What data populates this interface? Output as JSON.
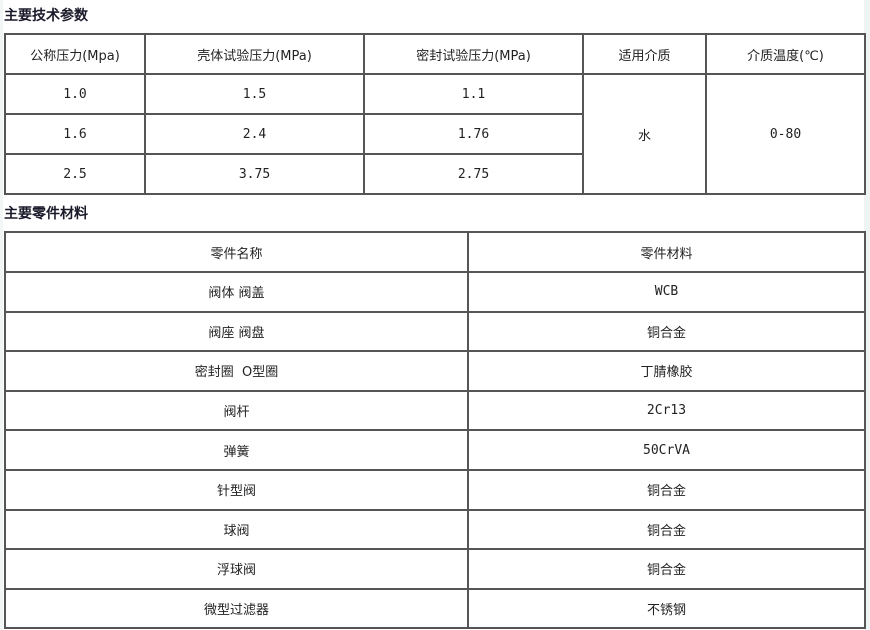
{
  "section1": {
    "title": "主要技术参数",
    "headers": [
      "公称压力(Mpa)",
      "壳体试验压力(MPa)",
      "密封试验压力(MPa)",
      "适用介质",
      "介质温度(℃)"
    ],
    "rows": [
      [
        "1.0",
        "1.5",
        "1.1"
      ],
      [
        "1.6",
        "2.4",
        "1.76"
      ],
      [
        "2.5",
        "3.75",
        "2.75"
      ]
    ],
    "medium": "水",
    "temperature": "0-80"
  },
  "section2": {
    "title": "主要零件材料",
    "headers": [
      "零件名称",
      "零件材料"
    ],
    "rows": [
      [
        "阀体 阀盖",
        "WCB"
      ],
      [
        "阀座 阀盘",
        "铜合金"
      ],
      [
        "密封圈  O型圈",
        "丁腈橡胶"
      ],
      [
        "阀杆",
        "2Cr13"
      ],
      [
        "弹簧",
        "50CrVA"
      ],
      [
        "针型阀",
        "铜合金"
      ],
      [
        "球阀",
        "铜合金"
      ],
      [
        "浮球阀",
        "铜合金"
      ],
      [
        "微型过滤器",
        "不锈钢"
      ]
    ]
  }
}
